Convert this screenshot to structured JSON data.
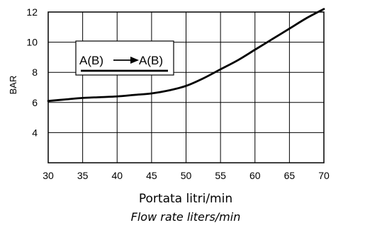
{
  "chart_data": {
    "type": "line",
    "xlabel": "Portata litri/min",
    "xlabel_secondary": "Flow rate liters/min",
    "ylabel": "BAR",
    "xlim": [
      30,
      70
    ],
    "ylim": [
      2,
      12
    ],
    "x_ticks": [
      "30",
      "35",
      "40",
      "45",
      "50",
      "55",
      "60",
      "65",
      "70"
    ],
    "y_ticks": [
      "4",
      "6",
      "8",
      "10",
      "12"
    ],
    "grid": true,
    "legend": {
      "label": "A(B)—▶A(B)",
      "from": "A(B)",
      "to": "A(B)",
      "placement": "top-left"
    },
    "series": [
      {
        "x": [
          30,
          32.5,
          35,
          37.5,
          40,
          42.5,
          45,
          47.5,
          50,
          52.5,
          55,
          57.5,
          60,
          62.5,
          65,
          67.5,
          70
        ],
        "y": [
          6.1,
          6.2,
          6.3,
          6.35,
          6.4,
          6.5,
          6.6,
          6.8,
          7.1,
          7.6,
          8.2,
          8.8,
          9.5,
          10.2,
          10.9,
          11.6,
          12.2
        ]
      }
    ]
  }
}
